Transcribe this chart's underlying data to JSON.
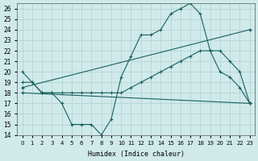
{
  "xlabel": "Humidex (Indice chaleur)",
  "ylabel": "",
  "xlim": [
    -0.5,
    23.5
  ],
  "ylim": [
    14,
    26.5
  ],
  "yticks": [
    14,
    15,
    16,
    17,
    18,
    19,
    20,
    21,
    22,
    23,
    24,
    25,
    26
  ],
  "xticks": [
    0,
    1,
    2,
    3,
    4,
    5,
    6,
    7,
    8,
    9,
    10,
    11,
    12,
    13,
    14,
    15,
    16,
    17,
    18,
    19,
    20,
    21,
    22,
    23
  ],
  "bg_color": "#d0eaea",
  "grid_color": "#b0d0d0",
  "line_color": "#1a6060",
  "line1_x": [
    0,
    1,
    2,
    3,
    4,
    5,
    6,
    7,
    8,
    9,
    10,
    11,
    12,
    13,
    14,
    15,
    16,
    17,
    18,
    19,
    20,
    21,
    22,
    23
  ],
  "line1_y": [
    20,
    19,
    18,
    18,
    17,
    15,
    15,
    15,
    14,
    15.5,
    19.5,
    21.5,
    23.5,
    23.5,
    24,
    25.5,
    26,
    26.5,
    25.5,
    22,
    20,
    19.5,
    18.5,
    17
  ],
  "line2_x": [
    0,
    1,
    2,
    3,
    4,
    5,
    6,
    7,
    8,
    9,
    10,
    11,
    12,
    13,
    14,
    15,
    16,
    17,
    18,
    19,
    20,
    21,
    22,
    23
  ],
  "line2_y": [
    19,
    19,
    18,
    18,
    18,
    18,
    18,
    18,
    18,
    18,
    18,
    18.5,
    19,
    19.5,
    20,
    20.5,
    21,
    21.5,
    22,
    22,
    22,
    21,
    20,
    17
  ],
  "line3_x": [
    0,
    23
  ],
  "line3_y": [
    18.5,
    24
  ],
  "line4_x": [
    0,
    23
  ],
  "line4_y": [
    18,
    17
  ]
}
